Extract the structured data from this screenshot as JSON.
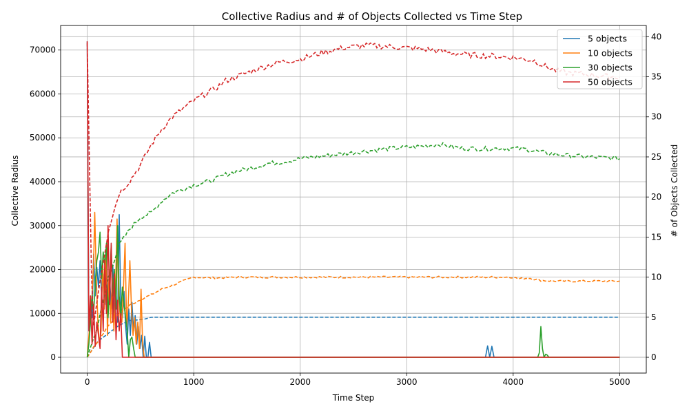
{
  "chart_data": {
    "type": "line",
    "title": "Collective Radius and # of Objects Collected vs Time Step",
    "xlabel": "Time Step",
    "ylabel": "Collective Radius",
    "y2label": "# of Objects Collected",
    "xlim": [
      -250,
      5250
    ],
    "ylim": [
      -3600,
      75600
    ],
    "y2lim": [
      -1.97,
      41.4
    ],
    "xticks": [
      0,
      1000,
      2000,
      3000,
      4000,
      5000
    ],
    "yticks": [
      0,
      10000,
      20000,
      30000,
      40000,
      50000,
      60000,
      70000
    ],
    "y2ticks": [
      0,
      5,
      10,
      15,
      20,
      25,
      30,
      35,
      40
    ],
    "grid": true,
    "legend_position": "upper right",
    "series": [
      {
        "name": "5 objects",
        "color": "#1f77b4",
        "radius": [
          [
            0,
            72000
          ],
          [
            15,
            6000
          ],
          [
            30,
            12000
          ],
          [
            45,
            9000
          ],
          [
            60,
            23500
          ],
          [
            75,
            14000
          ],
          [
            90,
            20500
          ],
          [
            105,
            16000
          ],
          [
            120,
            22000
          ],
          [
            135,
            14000
          ],
          [
            150,
            19000
          ],
          [
            165,
            12000
          ],
          [
            180,
            22000
          ],
          [
            195,
            13000
          ],
          [
            210,
            18500
          ],
          [
            225,
            11000
          ],
          [
            240,
            21000
          ],
          [
            255,
            9000
          ],
          [
            270,
            15000
          ],
          [
            285,
            8000
          ],
          [
            300,
            32500
          ],
          [
            315,
            12000
          ],
          [
            330,
            9000
          ],
          [
            345,
            15000
          ],
          [
            360,
            7000
          ],
          [
            375,
            3000
          ],
          [
            390,
            11000
          ],
          [
            405,
            5000
          ],
          [
            420,
            12500
          ],
          [
            435,
            6000
          ],
          [
            450,
            9500
          ],
          [
            465,
            3000
          ],
          [
            480,
            7000
          ],
          [
            495,
            2000
          ],
          [
            510,
            5000
          ],
          [
            525,
            0
          ],
          [
            540,
            4800
          ],
          [
            555,
            0
          ],
          [
            570,
            0
          ],
          [
            585,
            3400
          ],
          [
            600,
            0
          ],
          [
            3740,
            0
          ],
          [
            3760,
            2600
          ],
          [
            3780,
            0
          ],
          [
            3800,
            2500
          ],
          [
            3820,
            0
          ],
          [
            5000,
            0
          ]
        ],
        "collected": [
          [
            0,
            0
          ],
          [
            50,
            1
          ],
          [
            100,
            2
          ],
          [
            200,
            3
          ],
          [
            300,
            4
          ],
          [
            400,
            4.6
          ],
          [
            500,
            4.7
          ],
          [
            550,
            4.8
          ],
          [
            600,
            5
          ],
          [
            700,
            5
          ],
          [
            750,
            5
          ],
          [
            5000,
            5
          ]
        ]
      },
      {
        "name": "10 objects",
        "color": "#ff7f0e",
        "radius": [
          [
            0,
            0
          ],
          [
            15,
            5000
          ],
          [
            30,
            9000
          ],
          [
            45,
            14000
          ],
          [
            60,
            22000
          ],
          [
            70,
            33000
          ],
          [
            85,
            18000
          ],
          [
            100,
            8000
          ],
          [
            115,
            3000
          ],
          [
            130,
            6000
          ],
          [
            145,
            22000
          ],
          [
            160,
            11000
          ],
          [
            175,
            24000
          ],
          [
            190,
            5000
          ],
          [
            205,
            20000
          ],
          [
            220,
            8000
          ],
          [
            235,
            18000
          ],
          [
            250,
            6000
          ],
          [
            265,
            15000
          ],
          [
            280,
            31500
          ],
          [
            295,
            14000
          ],
          [
            310,
            9000
          ],
          [
            325,
            8000
          ],
          [
            340,
            16000
          ],
          [
            355,
            26000
          ],
          [
            370,
            7000
          ],
          [
            385,
            12000
          ],
          [
            400,
            22000
          ],
          [
            415,
            11000
          ],
          [
            430,
            5000
          ],
          [
            445,
            9000
          ],
          [
            460,
            3000
          ],
          [
            475,
            8000
          ],
          [
            490,
            2000
          ],
          [
            505,
            15500
          ],
          [
            520,
            3000
          ],
          [
            535,
            0
          ],
          [
            5000,
            0
          ]
        ],
        "collected": [
          [
            0,
            0
          ],
          [
            100,
            2
          ],
          [
            200,
            4
          ],
          [
            300,
            5.5
          ],
          [
            400,
            6.5
          ],
          [
            500,
            7.2
          ],
          [
            600,
            7.8
          ],
          [
            700,
            8.5
          ],
          [
            800,
            9
          ],
          [
            900,
            9.5
          ],
          [
            1000,
            10
          ],
          [
            1200,
            9.9
          ],
          [
            1400,
            10
          ],
          [
            2000,
            10
          ],
          [
            3000,
            10
          ],
          [
            4000,
            10
          ],
          [
            4050,
            9.8
          ],
          [
            4150,
            9.9
          ],
          [
            4250,
            9.6
          ],
          [
            4400,
            9.5
          ],
          [
            5000,
            9.5
          ]
        ]
      },
      {
        "name": "30 objects",
        "color": "#2ca02c",
        "radius": [
          [
            0,
            0
          ],
          [
            15,
            3000
          ],
          [
            30,
            8000
          ],
          [
            45,
            14000
          ],
          [
            60,
            10000
          ],
          [
            75,
            17000
          ],
          [
            90,
            22000
          ],
          [
            105,
            24000
          ],
          [
            120,
            28500
          ],
          [
            135,
            18000
          ],
          [
            150,
            24000
          ],
          [
            165,
            21000
          ],
          [
            180,
            26000
          ],
          [
            195,
            9000
          ],
          [
            210,
            16000
          ],
          [
            225,
            25500
          ],
          [
            240,
            14000
          ],
          [
            255,
            20000
          ],
          [
            270,
            11000
          ],
          [
            285,
            30000
          ],
          [
            300,
            14000
          ],
          [
            315,
            9000
          ],
          [
            330,
            16000
          ],
          [
            345,
            12000
          ],
          [
            360,
            9000
          ],
          [
            375,
            6000
          ],
          [
            390,
            0
          ],
          [
            405,
            4000
          ],
          [
            420,
            4600
          ],
          [
            435,
            2000
          ],
          [
            450,
            0
          ],
          [
            4230,
            0
          ],
          [
            4245,
            1000
          ],
          [
            4260,
            7000
          ],
          [
            4275,
            2000
          ],
          [
            4290,
            0
          ],
          [
            4305,
            700
          ],
          [
            4320,
            500
          ],
          [
            4335,
            0
          ],
          [
            5000,
            0
          ]
        ],
        "collected": [
          [
            0,
            0
          ],
          [
            100,
            4
          ],
          [
            200,
            10
          ],
          [
            300,
            14
          ],
          [
            400,
            16
          ],
          [
            500,
            17.5
          ],
          [
            600,
            18
          ],
          [
            700,
            19.5
          ],
          [
            800,
            20.5
          ],
          [
            900,
            21
          ],
          [
            1000,
            21.5
          ],
          [
            1100,
            21.8
          ],
          [
            1200,
            22.2
          ],
          [
            1300,
            22.8
          ],
          [
            1400,
            23.2
          ],
          [
            1500,
            23.5
          ],
          [
            1600,
            23.8
          ],
          [
            1700,
            24.2
          ],
          [
            1800,
            24.3
          ],
          [
            1900,
            24.5
          ],
          [
            2000,
            24.8
          ],
          [
            2200,
            25.1
          ],
          [
            2400,
            25.4
          ],
          [
            2600,
            25.7
          ],
          [
            2800,
            26
          ],
          [
            3000,
            26.2
          ],
          [
            3200,
            26.4
          ],
          [
            3300,
            26.6
          ],
          [
            3500,
            26.1
          ],
          [
            3700,
            26
          ],
          [
            3900,
            26.1
          ],
          [
            4100,
            26
          ],
          [
            4300,
            25.5
          ],
          [
            4500,
            25.2
          ],
          [
            4700,
            25
          ],
          [
            5000,
            24.8
          ]
        ]
      },
      {
        "name": "50 objects",
        "color": "#d62728",
        "radius": [
          [
            0,
            72000
          ],
          [
            15,
            6000
          ],
          [
            30,
            14000
          ],
          [
            45,
            3000
          ],
          [
            60,
            12000
          ],
          [
            75,
            2500
          ],
          [
            90,
            8000
          ],
          [
            105,
            5000
          ],
          [
            120,
            2000
          ],
          [
            135,
            16000
          ],
          [
            150,
            6000
          ],
          [
            165,
            22000
          ],
          [
            180,
            10000
          ],
          [
            195,
            30000
          ],
          [
            210,
            12000
          ],
          [
            225,
            26000
          ],
          [
            240,
            8000
          ],
          [
            255,
            19000
          ],
          [
            270,
            4000
          ],
          [
            285,
            13000
          ],
          [
            300,
            6000
          ],
          [
            315,
            10000
          ],
          [
            330,
            0
          ],
          [
            5000,
            0
          ]
        ],
        "collected": [
          [
            0,
            39.2
          ],
          [
            50,
            3
          ],
          [
            100,
            8
          ],
          [
            200,
            16
          ],
          [
            300,
            20.5
          ],
          [
            400,
            22
          ],
          [
            500,
            24
          ],
          [
            600,
            26.5
          ],
          [
            700,
            28.5
          ],
          [
            800,
            30
          ],
          [
            900,
            31
          ],
          [
            1000,
            32
          ],
          [
            1100,
            32.8
          ],
          [
            1200,
            33.5
          ],
          [
            1300,
            34.5
          ],
          [
            1400,
            35
          ],
          [
            1500,
            35.5
          ],
          [
            1600,
            36
          ],
          [
            1800,
            36.8
          ],
          [
            2000,
            37.2
          ],
          [
            2200,
            38
          ],
          [
            2400,
            38.6
          ],
          [
            2600,
            38.9
          ],
          [
            2800,
            38.8
          ],
          [
            3000,
            38.6
          ],
          [
            3200,
            38.4
          ],
          [
            3400,
            38
          ],
          [
            3600,
            37.7
          ],
          [
            3800,
            37.6
          ],
          [
            4000,
            37.4
          ],
          [
            4200,
            37
          ],
          [
            4300,
            36.3
          ],
          [
            4400,
            35.8
          ],
          [
            4500,
            35.5
          ],
          [
            4700,
            35.3
          ],
          [
            4900,
            35
          ],
          [
            5000,
            35
          ]
        ]
      }
    ]
  }
}
